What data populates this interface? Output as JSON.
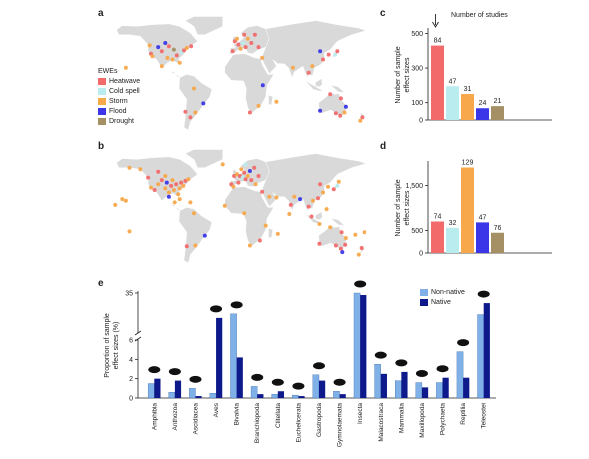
{
  "panel_labels": {
    "a": "a",
    "b": "b",
    "c": "c",
    "d": "d",
    "e": "e"
  },
  "colors": {
    "Heatwave": "#f26a6a",
    "Cold spell": "#b8ecee",
    "Storm": "#f7a84a",
    "Flood": "#3b37e8",
    "Drought": "#a58f64",
    "land": "#d9d9d9",
    "non_native": "#7fb1e8",
    "native": "#0e1a8c"
  },
  "legend": {
    "title": "EWEs",
    "items": [
      "Heatwave",
      "Cold spell",
      "Storm",
      "Flood",
      "Drought"
    ]
  },
  "annotation": {
    "number_of_studies": "Number of studies"
  },
  "chart_data": [
    {
      "panel": "c",
      "type": "bar",
      "categories": [
        "Heatwave",
        "Cold spell",
        "Storm",
        "Flood",
        "Drought"
      ],
      "values": [
        430,
        195,
        150,
        68,
        80
      ],
      "data_labels": [
        "84",
        "47",
        "31",
        "24",
        "21"
      ],
      "ylabel": "Number of sample effect sizes",
      "yticks": [
        0,
        100,
        300,
        500
      ],
      "ylim": [
        0,
        520
      ]
    },
    {
      "panel": "d",
      "type": "bar",
      "categories": [
        "Heatwave",
        "Cold spell",
        "Storm",
        "Flood",
        "Drought"
      ],
      "values": [
        700,
        560,
        1900,
        680,
        450
      ],
      "data_labels": [
        "74",
        "32",
        "129",
        "47",
        "76"
      ],
      "ylabel": "Number of sample effect sizes",
      "yticks": [
        0,
        500,
        1500
      ],
      "ylim": [
        0,
        2000
      ]
    },
    {
      "panel": "e",
      "type": "bar",
      "categories": [
        "Amphibia",
        "Anthozoa",
        "Ascidiacea",
        "Aves",
        "Bivalvia",
        "Branchiopoda",
        "Clitellata",
        "Euchelicerata",
        "Gastropoda",
        "Gymnolaemata",
        "Insecta",
        "Malacostraca",
        "Mammalia",
        "Maxillopoda",
        "Polychaeta",
        "Reptilia",
        "Teleostei"
      ],
      "series": [
        {
          "name": "Non-native",
          "values": [
            1.5,
            0.6,
            1.0,
            0.5,
            19.5,
            1.2,
            0.4,
            0.3,
            2.4,
            0.7,
            35.0,
            3.5,
            1.8,
            1.6,
            1.6,
            4.8,
            19.0
          ]
        },
        {
          "name": "Native",
          "values": [
            2.0,
            1.8,
            0.2,
            16.5,
            4.2,
            0.4,
            0.7,
            0.2,
            1.8,
            0.4,
            33.5,
            2.5,
            2.7,
            1.1,
            2.1,
            2.1,
            27.5
          ]
        }
      ],
      "ylabel": "Proportion of sample effect sizes (%)",
      "yticks": [
        0,
        2,
        4,
        6,
        35
      ],
      "axis_break": true
    }
  ],
  "maps": {
    "a": {
      "points": [
        {
          "lon": -122,
          "lat": 47,
          "t": "Storm"
        },
        {
          "lon": -120,
          "lat": 37,
          "t": "Heatwave"
        },
        {
          "lon": -118,
          "lat": 34,
          "t": "Storm"
        },
        {
          "lon": -110,
          "lat": 45,
          "t": "Flood"
        },
        {
          "lon": -105,
          "lat": 40,
          "t": "Heatwave"
        },
        {
          "lon": -97,
          "lat": 32,
          "t": "Storm"
        },
        {
          "lon": -95,
          "lat": 46,
          "t": "Heatwave"
        },
        {
          "lon": -90,
          "lat": 30,
          "t": "Storm"
        },
        {
          "lon": -88,
          "lat": 42,
          "t": "Drought"
        },
        {
          "lon": -84,
          "lat": 35,
          "t": "Heatwave"
        },
        {
          "lon": -80,
          "lat": 26,
          "t": "Storm"
        },
        {
          "lon": -77,
          "lat": 39,
          "t": "Cold spell"
        },
        {
          "lon": -74,
          "lat": 41,
          "t": "Heatwave"
        },
        {
          "lon": -70,
          "lat": 44,
          "t": "Storm"
        },
        {
          "lon": -64,
          "lat": 46,
          "t": "Heatwave"
        },
        {
          "lon": -100,
          "lat": 50,
          "t": "Flood"
        },
        {
          "lon": -105,
          "lat": 22,
          "t": "Storm"
        },
        {
          "lon": -58,
          "lat": -34,
          "t": "Storm"
        },
        {
          "lon": -65,
          "lat": -40,
          "t": "Heatwave"
        },
        {
          "lon": -47,
          "lat": -23,
          "t": "Flood"
        },
        {
          "lon": -60,
          "lat": -5,
          "t": "Storm"
        },
        {
          "lon": -72,
          "lat": -33,
          "t": "Heatwave"
        },
        {
          "lon": -3,
          "lat": 52,
          "t": "Heatwave"
        },
        {
          "lon": 2,
          "lat": 48,
          "t": "Heatwave"
        },
        {
          "lon": 8,
          "lat": 50,
          "t": "Cold spell"
        },
        {
          "lon": 12,
          "lat": 45,
          "t": "Heatwave"
        },
        {
          "lon": 15,
          "lat": 55,
          "t": "Storm"
        },
        {
          "lon": 20,
          "lat": 50,
          "t": "Heatwave"
        },
        {
          "lon": 25,
          "lat": 60,
          "t": "Heatwave"
        },
        {
          "lon": -6,
          "lat": 40,
          "t": "Heatwave"
        },
        {
          "lon": 5,
          "lat": 43,
          "t": "Storm"
        },
        {
          "lon": 30,
          "lat": 45,
          "t": "Heatwave"
        },
        {
          "lon": 35,
          "lat": 32,
          "t": "Storm"
        },
        {
          "lon": 10,
          "lat": 60,
          "t": "Heatwave"
        },
        {
          "lon": 0,
          "lat": 55,
          "t": "Storm"
        },
        {
          "lon": 120,
          "lat": 30,
          "t": "Heatwave"
        },
        {
          "lon": 116,
          "lat": 40,
          "t": "Flood"
        },
        {
          "lon": 128,
          "lat": 36,
          "t": "Heatwave"
        },
        {
          "lon": 137,
          "lat": 36,
          "t": "Cold spell"
        },
        {
          "lon": 140,
          "lat": 40,
          "t": "Heatwave"
        },
        {
          "lon": 105,
          "lat": 22,
          "t": "Storm"
        },
        {
          "lon": 78,
          "lat": 20,
          "t": "Storm"
        },
        {
          "lon": 100,
          "lat": 14,
          "t": "Heatwave"
        },
        {
          "lon": 145,
          "lat": -17,
          "t": "Heatwave"
        },
        {
          "lon": 152,
          "lat": -27,
          "t": "Flood"
        },
        {
          "lon": 150,
          "lat": -34,
          "t": "Storm"
        },
        {
          "lon": 144,
          "lat": -38,
          "t": "Heatwave"
        },
        {
          "lon": 138,
          "lat": -35,
          "t": "Heatwave"
        },
        {
          "lon": 116,
          "lat": -32,
          "t": "Flood"
        },
        {
          "lon": 130,
          "lat": -12,
          "t": "Heatwave"
        },
        {
          "lon": 175,
          "lat": -40,
          "t": "Heatwave"
        },
        {
          "lon": 172,
          "lat": -44,
          "t": "Storm"
        },
        {
          "lon": 18,
          "lat": -34,
          "t": "Heatwave"
        },
        {
          "lon": 30,
          "lat": -26,
          "t": "Storm"
        },
        {
          "lon": 36,
          "lat": -1,
          "t": "Flood"
        },
        {
          "lon": 55,
          "lat": -21,
          "t": "Storm"
        },
        {
          "lon": -155,
          "lat": 20,
          "t": "Storm"
        }
      ]
    },
    "b": {
      "points": [
        {
          "lon": -124,
          "lat": 48,
          "t": "Heatwave"
        },
        {
          "lon": -120,
          "lat": 36,
          "t": "Storm"
        },
        {
          "lon": -115,
          "lat": 33,
          "t": "Heatwave"
        },
        {
          "lon": -110,
          "lat": 40,
          "t": "Storm"
        },
        {
          "lon": -105,
          "lat": 45,
          "t": "Heatwave"
        },
        {
          "lon": -100,
          "lat": 35,
          "t": "Storm"
        },
        {
          "lon": -98,
          "lat": 42,
          "t": "Flood"
        },
        {
          "lon": -95,
          "lat": 30,
          "t": "Storm"
        },
        {
          "lon": -92,
          "lat": 38,
          "t": "Heatwave"
        },
        {
          "lon": -90,
          "lat": 45,
          "t": "Storm"
        },
        {
          "lon": -88,
          "lat": 33,
          "t": "Storm"
        },
        {
          "lon": -85,
          "lat": 40,
          "t": "Heatwave"
        },
        {
          "lon": -82,
          "lat": 28,
          "t": "Storm"
        },
        {
          "lon": -80,
          "lat": 35,
          "t": "Storm"
        },
        {
          "lon": -78,
          "lat": 42,
          "t": "Heatwave"
        },
        {
          "lon": -75,
          "lat": 38,
          "t": "Storm"
        },
        {
          "lon": -72,
          "lat": 44,
          "t": "Heatwave"
        },
        {
          "lon": -68,
          "lat": 46,
          "t": "Storm"
        },
        {
          "lon": -100,
          "lat": 50,
          "t": "Storm"
        },
        {
          "lon": -110,
          "lat": 55,
          "t": "Heatwave"
        },
        {
          "lon": -135,
          "lat": 58,
          "t": "Storm"
        },
        {
          "lon": -150,
          "lat": 60,
          "t": "Storm"
        },
        {
          "lon": -155,
          "lat": 20,
          "t": "Storm"
        },
        {
          "lon": -160,
          "lat": 22,
          "t": "Storm"
        },
        {
          "lon": -170,
          "lat": 15,
          "t": "Storm"
        },
        {
          "lon": -87,
          "lat": 18,
          "t": "Storm"
        },
        {
          "lon": -80,
          "lat": 22,
          "t": "Storm"
        },
        {
          "lon": -65,
          "lat": 18,
          "t": "Storm"
        },
        {
          "lon": -95,
          "lat": 25,
          "t": "Flood"
        },
        {
          "lon": -58,
          "lat": -34,
          "t": "Storm"
        },
        {
          "lon": -45,
          "lat": -22,
          "t": "Flood"
        },
        {
          "lon": -70,
          "lat": -35,
          "t": "Heatwave"
        },
        {
          "lon": -60,
          "lat": 5,
          "t": "Storm"
        },
        {
          "lon": -4,
          "lat": 50,
          "t": "Heatwave"
        },
        {
          "lon": 0,
          "lat": 52,
          "t": "Storm"
        },
        {
          "lon": 4,
          "lat": 50,
          "t": "Heatwave"
        },
        {
          "lon": 8,
          "lat": 48,
          "t": "Cold spell"
        },
        {
          "lon": 10,
          "lat": 54,
          "t": "Heatwave"
        },
        {
          "lon": 12,
          "lat": 46,
          "t": "Heatwave"
        },
        {
          "lon": 15,
          "lat": 50,
          "t": "Storm"
        },
        {
          "lon": 18,
          "lat": 56,
          "t": "Flood"
        },
        {
          "lon": 20,
          "lat": 45,
          "t": "Heatwave"
        },
        {
          "lon": 24,
          "lat": 60,
          "t": "Heatwave"
        },
        {
          "lon": 26,
          "lat": 40,
          "t": "Storm"
        },
        {
          "lon": 30,
          "lat": 50,
          "t": "Heatwave"
        },
        {
          "lon": -8,
          "lat": 40,
          "t": "Heatwave"
        },
        {
          "lon": -5,
          "lat": 37,
          "t": "Storm"
        },
        {
          "lon": 2,
          "lat": 42,
          "t": "Heatwave"
        },
        {
          "lon": 6,
          "lat": 58,
          "t": "Storm"
        },
        {
          "lon": 12,
          "lat": 64,
          "t": "Cold spell"
        },
        {
          "lon": -20,
          "lat": 64,
          "t": "Storm"
        },
        {
          "lon": 35,
          "lat": 31,
          "t": "Heatwave"
        },
        {
          "lon": 45,
          "lat": 25,
          "t": "Storm"
        },
        {
          "lon": 55,
          "lat": 24,
          "t": "Storm"
        },
        {
          "lon": 75,
          "lat": 15,
          "t": "Heatwave"
        },
        {
          "lon": 80,
          "lat": 25,
          "t": "Storm"
        },
        {
          "lon": 88,
          "lat": 22,
          "t": "Flood"
        },
        {
          "lon": 100,
          "lat": 13,
          "t": "Heatwave"
        },
        {
          "lon": 106,
          "lat": 20,
          "t": "Storm"
        },
        {
          "lon": 113,
          "lat": 23,
          "t": "Heatwave"
        },
        {
          "lon": 120,
          "lat": 30,
          "t": "Storm"
        },
        {
          "lon": 116,
          "lat": 40,
          "t": "Heatwave"
        },
        {
          "lon": 127,
          "lat": 37,
          "t": "Storm"
        },
        {
          "lon": 135,
          "lat": 34,
          "t": "Heatwave"
        },
        {
          "lon": 140,
          "lat": 38,
          "t": "Cold spell"
        },
        {
          "lon": 142,
          "lat": 43,
          "t": "Storm"
        },
        {
          "lon": 104,
          "lat": 1,
          "t": "Heatwave"
        },
        {
          "lon": 115,
          "lat": -8,
          "t": "Storm"
        },
        {
          "lon": 125,
          "lat": 10,
          "t": "Storm"
        },
        {
          "lon": 146,
          "lat": -18,
          "t": "Heatwave"
        },
        {
          "lon": 152,
          "lat": -25,
          "t": "Storm"
        },
        {
          "lon": 151,
          "lat": -33,
          "t": "Heatwave"
        },
        {
          "lon": 145,
          "lat": -38,
          "t": "Heatwave"
        },
        {
          "lon": 138,
          "lat": -34,
          "t": "Heatwave"
        },
        {
          "lon": 147,
          "lat": -42,
          "t": "Flood"
        },
        {
          "lon": 115,
          "lat": -32,
          "t": "Heatwave"
        },
        {
          "lon": 130,
          "lat": -12,
          "t": "Storm"
        },
        {
          "lon": 174,
          "lat": -37,
          "t": "Heatwave"
        },
        {
          "lon": 170,
          "lat": -45,
          "t": "Storm"
        },
        {
          "lon": 18,
          "lat": -34,
          "t": "Storm"
        },
        {
          "lon": 32,
          "lat": -28,
          "t": "Heatwave"
        },
        {
          "lon": 40,
          "lat": -10,
          "t": "Storm"
        },
        {
          "lon": 10,
          "lat": 5,
          "t": "Storm"
        },
        {
          "lon": -17,
          "lat": 14,
          "t": "Storm"
        },
        {
          "lon": 57,
          "lat": -20,
          "t": "Storm"
        },
        {
          "lon": 73,
          "lat": 4,
          "t": "Storm"
        },
        {
          "lon": -150,
          "lat": -17,
          "t": "Storm"
        },
        {
          "lon": 165,
          "lat": -21,
          "t": "Storm"
        },
        {
          "lon": 178,
          "lat": -18,
          "t": "Storm"
        }
      ]
    }
  }
}
